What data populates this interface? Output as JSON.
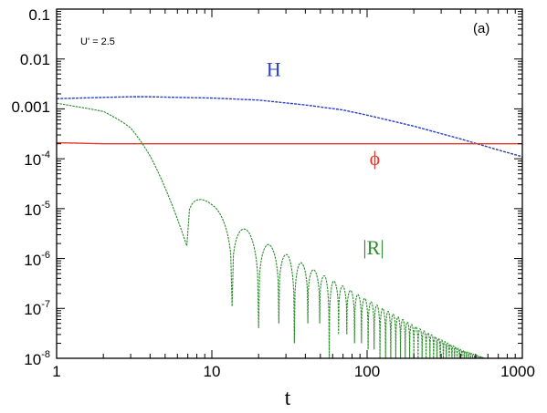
{
  "chart_data": {
    "type": "line",
    "title": "",
    "panel_label": "(a)",
    "annotation": "U' = 2.5",
    "xlabel": "t",
    "ylabel": "",
    "x_scale": "log",
    "y_scale": "log",
    "xlim": [
      1,
      1000
    ],
    "ylim": [
      1e-08,
      0.1
    ],
    "x_ticks": [
      "1",
      "10",
      "100",
      "1000"
    ],
    "y_ticks": [
      {
        "base": "0.1",
        "exp": ""
      },
      {
        "base": "0.01",
        "exp": ""
      },
      {
        "base": "0.001",
        "exp": ""
      },
      {
        "base": "10",
        "exp": "-4"
      },
      {
        "base": "10",
        "exp": "-5"
      },
      {
        "base": "10",
        "exp": "-6"
      },
      {
        "base": "10",
        "exp": "-7"
      },
      {
        "base": "10",
        "exp": "-8"
      }
    ],
    "series": [
      {
        "name": "H",
        "color": "#2b3fc4",
        "x": [
          1,
          2,
          3,
          4,
          6,
          10,
          20,
          40,
          70,
          100,
          200,
          400,
          700,
          1000
        ],
        "y": [
          0.0016,
          0.0017,
          0.00175,
          0.00175,
          0.0017,
          0.00165,
          0.0015,
          0.0012,
          0.00095,
          0.00075,
          0.00045,
          0.00025,
          0.00015,
          0.00011
        ]
      },
      {
        "name": "ϕ",
        "color": "#e03a2a",
        "x": [
          1,
          2,
          5,
          10,
          100,
          1000
        ],
        "y": [
          0.00021,
          0.0002,
          0.0002,
          0.0002,
          0.0002,
          0.0002
        ]
      },
      {
        "name": "|R|",
        "color": "#2e8b2e",
        "envelope_x": [
          1,
          2,
          3,
          4,
          5,
          7,
          10,
          20,
          50,
          100,
          200,
          400,
          700,
          1000
        ],
        "envelope_y": [
          0.0013,
          0.0009,
          0.0005,
          0.00022,
          0.0001,
          3.2e-05,
          1.2e-05,
          2.5e-06,
          5e-07,
          1.5e-07,
          4.5e-08,
          1.5e-08,
          8e-09,
          1e-08
        ],
        "zeros_x": [
          6.9,
          13.5,
          20.0,
          27.0,
          34.0,
          41.5,
          49.5,
          57.0,
          65.5,
          74.0,
          83.0,
          92.0,
          101.5,
          111.0,
          121.0,
          131.5,
          142.0,
          153.0,
          164.0,
          176.0,
          188.0,
          200.0,
          213.0,
          226.0,
          240.0,
          254.0,
          268.0
        ],
        "zeros_y": [
          1.8e-06,
          1.1e-07,
          4e-08,
          5e-08,
          2e-08,
          5e-08,
          5e-08,
          1e-08,
          3e-08,
          3e-08,
          2e-08,
          2e-08,
          1.5e-08,
          1.5e-08,
          1e-08,
          1e-08,
          1e-08,
          1e-08,
          1e-08,
          1e-08,
          1e-08,
          1e-08,
          1e-08,
          1e-08,
          1e-08,
          1e-08,
          1e-08
        ]
      }
    ],
    "curve_labels": [
      {
        "text": "H",
        "x": 25,
        "y": 0.0045,
        "color": "#2b3fc4"
      },
      {
        "text": "ϕ",
        "x": 112,
        "y": 7.5e-05,
        "color": "#e03a2a"
      },
      {
        "text": "|R|",
        "x": 110,
        "y": 1.2e-06,
        "color": "#2e8b2e"
      }
    ],
    "grid": false
  }
}
